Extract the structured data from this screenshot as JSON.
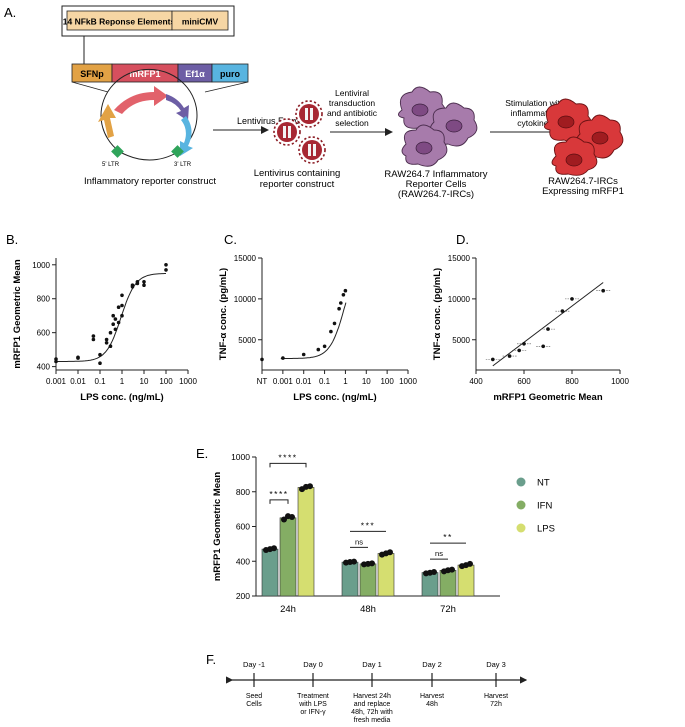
{
  "figure": {
    "panel_labels": {
      "a": "A.",
      "b": "B.",
      "c": "C.",
      "d": "D.",
      "e": "E.",
      "f": "F."
    },
    "colors": {
      "nt": "#6a9e8c",
      "ifn": "#84ad64",
      "lps": "#d5de70",
      "red_cell": "#d8383a",
      "purple_cell": "#a77bab"
    },
    "panel_a": {
      "response_elements": "14 NFkB Reponse Elements",
      "promoter": "miniCMV",
      "segments": [
        "SFNp",
        "mRFP1",
        "Ef1α",
        "puro"
      ],
      "ltr5": "5' LTR",
      "ltr3": "3' LTR",
      "construct_caption": "Inflammatory reporter construct",
      "step1_label": "Lentivirus Formation",
      "lentivirus_caption": [
        "Lentivirus containing",
        "reporter construct"
      ],
      "step2_label": [
        "Lentiviral",
        "transduction",
        "and antibiotic",
        "selection"
      ],
      "raw_caption": [
        "RAW264.7 Inflammatory",
        "Reporter Cells",
        "(RAW264.7-IRCs)"
      ],
      "step3_label": [
        "Stimulation with",
        "inflammatory",
        "cytokines"
      ],
      "irc_caption": [
        "RAW264.7-IRCs",
        "Expressing mRFP1"
      ]
    },
    "panel_f": {
      "days": [
        "Day -1",
        "Day 0",
        "Day 1",
        "Day 2",
        "Day 3"
      ],
      "notes": [
        [
          "Seed",
          "Cells"
        ],
        [
          "Treatment",
          "with LPS",
          "or IFN-γ"
        ],
        [
          "Harvest 24h",
          "and replace",
          "48h, 72h with",
          "fresh media"
        ],
        [
          "Harvest",
          "48h"
        ],
        [
          "Harvest",
          "72h"
        ]
      ]
    }
  },
  "chart_data": [
    {
      "id": "B",
      "type": "scatter",
      "title": "",
      "xlabel": "LPS conc. (ng/mL)",
      "ylabel": "mRFP1 Geometric Mean",
      "xscale": "log",
      "xlim": [
        0.001,
        1000
      ],
      "ylim": [
        380,
        1040
      ],
      "xticks": [
        0.001,
        0.01,
        0.1,
        1,
        10,
        100,
        1000
      ],
      "xtick_labels": [
        "0.001",
        "0.01",
        "0.1",
        "1",
        "10",
        "100",
        "1000"
      ],
      "yticks": [
        400,
        600,
        800,
        1000
      ],
      "ytick_labels": [
        "400",
        "600",
        "800",
        "1000"
      ],
      "points": [
        [
          0.001,
          430
        ],
        [
          0.001,
          445
        ],
        [
          0.01,
          450
        ],
        [
          0.01,
          455
        ],
        [
          0.05,
          580
        ],
        [
          0.05,
          560
        ],
        [
          0.1,
          420
        ],
        [
          0.1,
          470
        ],
        [
          0.2,
          540
        ],
        [
          0.2,
          560
        ],
        [
          0.3,
          600
        ],
        [
          0.3,
          520
        ],
        [
          0.4,
          650
        ],
        [
          0.4,
          700
        ],
        [
          0.5,
          620
        ],
        [
          0.5,
          680
        ],
        [
          0.7,
          660
        ],
        [
          0.7,
          750
        ],
        [
          1,
          820
        ],
        [
          1,
          760
        ],
        [
          1,
          700
        ],
        [
          3,
          880
        ],
        [
          3,
          870
        ],
        [
          5,
          890
        ],
        [
          5,
          900
        ],
        [
          10,
          880
        ],
        [
          10,
          900
        ],
        [
          100,
          1000
        ],
        [
          100,
          970
        ]
      ],
      "curve": {
        "bottom": 430,
        "top": 950,
        "ec50": 0.9,
        "hill": 1.3
      }
    },
    {
      "id": "C",
      "type": "scatter",
      "title": "",
      "xlabel": "LPS conc. (ng/mL)",
      "ylabel": "TNF-α conc. (pg/mL)",
      "xscale": "log",
      "xlim": [
        0.0001,
        1000
      ],
      "ylim": [
        1300,
        15000
      ],
      "xticks": [
        0.0001,
        0.001,
        0.01,
        0.1,
        1,
        10,
        100,
        1000
      ],
      "xtick_labels": [
        "NT",
        "0.001",
        "0.01",
        "0.1",
        "1",
        "10",
        "100",
        "1000"
      ],
      "yticks": [
        5000,
        10000,
        15000
      ],
      "ytick_labels": [
        "5000",
        "10000",
        "15000"
      ],
      "points": [
        [
          0.0001,
          2600
        ],
        [
          0.001,
          2750
        ],
        [
          0.01,
          3200
        ],
        [
          0.05,
          3800
        ],
        [
          0.1,
          4200
        ],
        [
          0.2,
          6000
        ],
        [
          0.3,
          7000
        ],
        [
          0.5,
          8800
        ],
        [
          0.6,
          9500
        ],
        [
          0.8,
          10500
        ],
        [
          1,
          11000
        ]
      ],
      "curve": {
        "bottom": 2700,
        "top": 16000,
        "ec50": 1.0,
        "hill": 1.2
      }
    },
    {
      "id": "D",
      "type": "scatter",
      "title": "",
      "xlabel": "mRFP1 Geometric Mean",
      "ylabel": "TNF-α conc. (pg/mL)",
      "xlim": [
        400,
        1000
      ],
      "ylim": [
        1300,
        15000
      ],
      "xticks": [
        400,
        600,
        800,
        1000
      ],
      "xtick_labels": [
        "400",
        "600",
        "800",
        "1000"
      ],
      "yticks": [
        5000,
        10000,
        15000
      ],
      "ytick_labels": [
        "5000",
        "10000",
        "15000"
      ],
      "points": [
        [
          470,
          2600
        ],
        [
          540,
          3000
        ],
        [
          580,
          3700
        ],
        [
          600,
          4500
        ],
        [
          680,
          4200
        ],
        [
          700,
          6300
        ],
        [
          760,
          8500
        ],
        [
          800,
          10000
        ],
        [
          930,
          11000
        ]
      ],
      "fit_line": [
        [
          470,
          1800
        ],
        [
          930,
          12000
        ]
      ]
    },
    {
      "id": "E",
      "type": "bar",
      "title": "",
      "xlabel": "",
      "ylabel": "mRFP1 Geometric Mean",
      "ylim": [
        200,
        1000
      ],
      "yticks": [
        200,
        400,
        600,
        800,
        1000
      ],
      "ytick_labels": [
        "200",
        "400",
        "600",
        "800",
        "1000"
      ],
      "categories": [
        "24h",
        "48h",
        "72h"
      ],
      "series": [
        {
          "name": "NT",
          "color": "#6a9e8c",
          "values": [
            470,
            395,
            335
          ],
          "replicates": [
            [
              465,
              470,
              475
            ],
            [
              392,
              396,
              398
            ],
            [
              330,
              334,
              338
            ]
          ]
        },
        {
          "name": "IFN",
          "color": "#84ad64",
          "values": [
            650,
            385,
            348
          ],
          "replicates": [
            [
              640,
              660,
              655
            ],
            [
              382,
              385,
              388
            ],
            [
              342,
              348,
              352
            ]
          ]
        },
        {
          "name": "LPS",
          "color": "#d5de70",
          "values": [
            825,
            445,
            378
          ],
          "replicates": [
            [
              815,
              828,
              832
            ],
            [
              438,
              445,
              452
            ],
            [
              372,
              378,
              385
            ]
          ]
        }
      ],
      "significance": [
        {
          "group": "24h",
          "compare": "NT-IFN",
          "label": "****"
        },
        {
          "group": "24h",
          "compare": "NT-LPS",
          "label": "****"
        },
        {
          "group": "48h",
          "compare": "NT-IFN",
          "label": "ns"
        },
        {
          "group": "48h",
          "compare": "NT-LPS",
          "label": "***"
        },
        {
          "group": "72h",
          "compare": "NT-IFN",
          "label": "ns"
        },
        {
          "group": "72h",
          "compare": "NT-LPS",
          "label": "**"
        }
      ]
    }
  ]
}
